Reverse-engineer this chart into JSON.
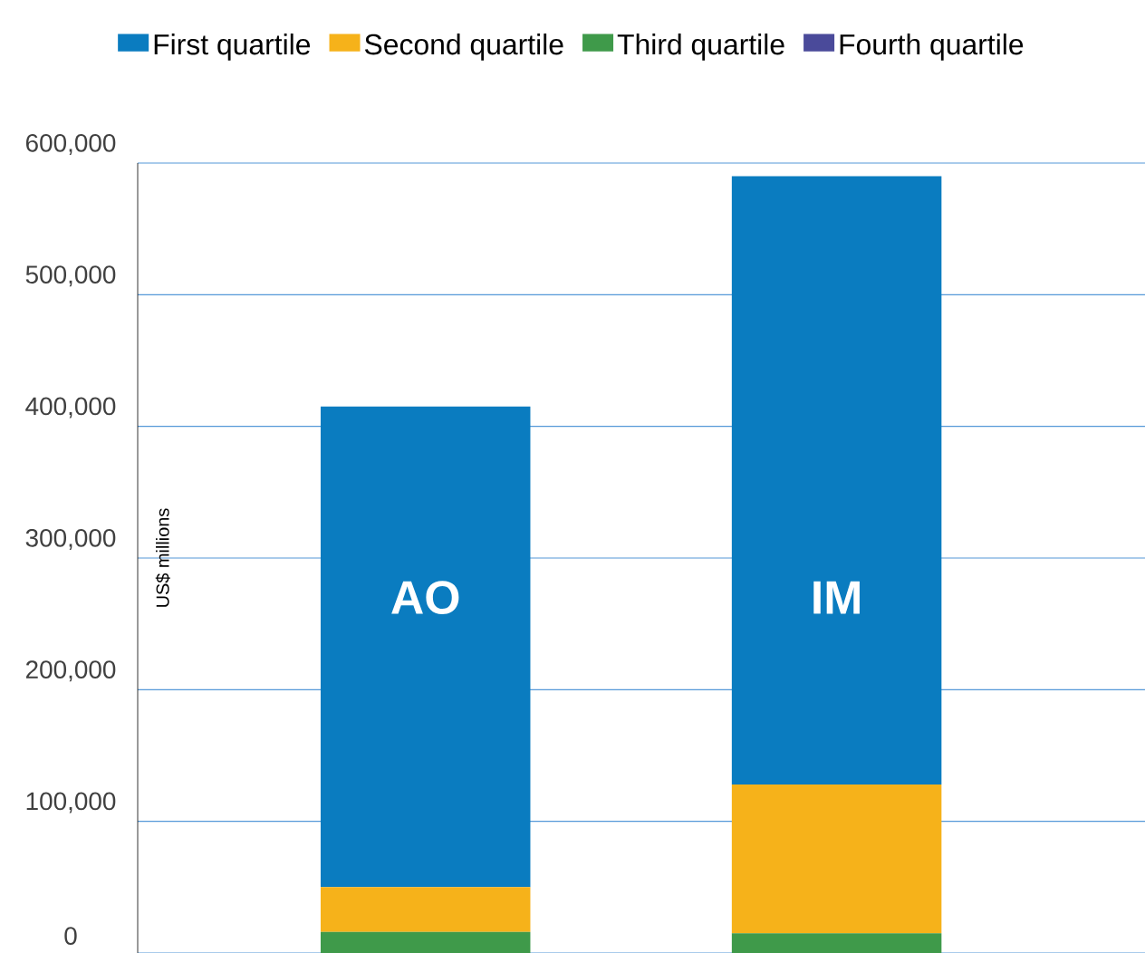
{
  "chart_data": {
    "type": "bar",
    "stacked": true,
    "ylabel": "US$ millions",
    "categories": [
      "AO",
      "IM"
    ],
    "series": [
      {
        "name": "Fourth quartile",
        "color": "#4a4a9a",
        "values": [
          null,
          null
        ]
      },
      {
        "name": "Third quartile",
        "color": "#3f9a4a",
        "values": [
          16000,
          15000
        ]
      },
      {
        "name": "Second quartile",
        "color": "#f6b21a",
        "values": [
          34000,
          113000
        ]
      },
      {
        "name": "First quartile",
        "color": "#0a7cc0",
        "values": [
          365000,
          462000
        ]
      }
    ],
    "ylim": [
      0,
      600000
    ],
    "yticks": [
      0,
      {
        "value": 100000,
        "label": "100,000"
      },
      {
        "value": 200000,
        "label": "200,000"
      },
      {
        "value": 300000,
        "label": "300,000"
      },
      {
        "value": 400000,
        "label": "400,000"
      },
      {
        "value": 500000,
        "label": "500,000"
      },
      {
        "value": 600000,
        "label": "600,000"
      }
    ],
    "grid": "y",
    "legend": "top"
  }
}
